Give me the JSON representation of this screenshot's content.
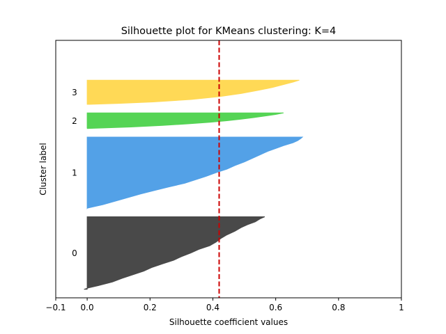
{
  "chart_data": {
    "type": "area",
    "title": "Silhouette plot for KMeans clustering: K=4",
    "xlabel": "Silhouette coefficient values",
    "ylabel": "Cluster label",
    "xlim": [
      -0.1,
      1.0
    ],
    "ylim": [
      0,
      1810
    ],
    "xticks": [
      -0.1,
      0.0,
      0.2,
      0.4,
      0.6,
      0.8,
      1.0
    ],
    "xtick_labels": [
      "−0.1",
      "0.0",
      "0.2",
      "0.4",
      "0.6",
      "0.8",
      "1"
    ],
    "yticks": [],
    "grid": false,
    "average_silhouette": 0.42,
    "average_line_color": "#cc0000",
    "series": [
      {
        "name": "0",
        "color": "#404040",
        "y_lower": 60,
        "y_upper": 570,
        "profile": [
          [
            0.0,
            0.565
          ],
          [
            0.03,
            0.55
          ],
          [
            0.07,
            0.535
          ],
          [
            0.11,
            0.51
          ],
          [
            0.15,
            0.49
          ],
          [
            0.2,
            0.47
          ],
          [
            0.25,
            0.445
          ],
          [
            0.3,
            0.425
          ],
          [
            0.35,
            0.41
          ],
          [
            0.4,
            0.39
          ],
          [
            0.45,
            0.355
          ],
          [
            0.5,
            0.33
          ],
          [
            0.55,
            0.3
          ],
          [
            0.6,
            0.275
          ],
          [
            0.65,
            0.24
          ],
          [
            0.7,
            0.205
          ],
          [
            0.75,
            0.18
          ],
          [
            0.8,
            0.145
          ],
          [
            0.85,
            0.11
          ],
          [
            0.9,
            0.08
          ],
          [
            0.95,
            0.035
          ],
          [
            0.98,
            0.005
          ],
          [
            1.0,
            -0.01
          ]
        ]
      },
      {
        "name": "1",
        "color": "#4a9de6",
        "y_lower": 630,
        "y_upper": 1130,
        "profile": [
          [
            0.0,
            0.685
          ],
          [
            0.02,
            0.68
          ],
          [
            0.05,
            0.67
          ],
          [
            0.08,
            0.655
          ],
          [
            0.12,
            0.625
          ],
          [
            0.16,
            0.6
          ],
          [
            0.2,
            0.575
          ],
          [
            0.25,
            0.55
          ],
          [
            0.3,
            0.525
          ],
          [
            0.35,
            0.5
          ],
          [
            0.4,
            0.47
          ],
          [
            0.45,
            0.445
          ],
          [
            0.5,
            0.41
          ],
          [
            0.55,
            0.38
          ],
          [
            0.6,
            0.345
          ],
          [
            0.65,
            0.31
          ],
          [
            0.7,
            0.26
          ],
          [
            0.75,
            0.215
          ],
          [
            0.8,
            0.17
          ],
          [
            0.85,
            0.13
          ],
          [
            0.9,
            0.09
          ],
          [
            0.95,
            0.05
          ],
          [
            1.0,
            0.0
          ]
        ]
      },
      {
        "name": "2",
        "color": "#4cd24c",
        "y_lower": 1190,
        "y_upper": 1300,
        "profile": [
          [
            0.0,
            0.625
          ],
          [
            0.1,
            0.6
          ],
          [
            0.2,
            0.565
          ],
          [
            0.3,
            0.53
          ],
          [
            0.4,
            0.49
          ],
          [
            0.5,
            0.445
          ],
          [
            0.6,
            0.39
          ],
          [
            0.7,
            0.32
          ],
          [
            0.8,
            0.24
          ],
          [
            0.9,
            0.14
          ],
          [
            1.0,
            0.0
          ]
        ]
      },
      {
        "name": "3",
        "color": "#ffd84d",
        "y_lower": 1360,
        "y_upper": 1530,
        "profile": [
          [
            0.0,
            0.675
          ],
          [
            0.08,
            0.655
          ],
          [
            0.18,
            0.625
          ],
          [
            0.3,
            0.59
          ],
          [
            0.42,
            0.545
          ],
          [
            0.55,
            0.49
          ],
          [
            0.68,
            0.42
          ],
          [
            0.8,
            0.33
          ],
          [
            0.9,
            0.21
          ],
          [
            0.96,
            0.1
          ],
          [
            1.0,
            0.0
          ]
        ]
      }
    ]
  }
}
